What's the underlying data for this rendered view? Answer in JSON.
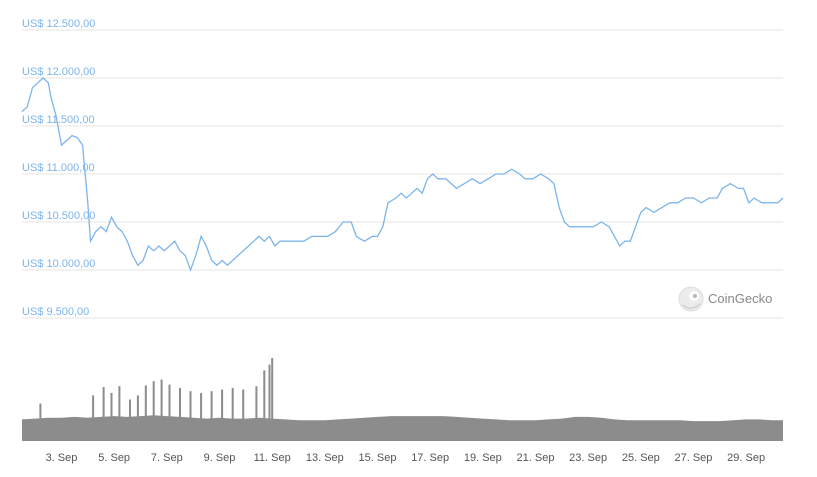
{
  "chart_data": {
    "type": "line",
    "title": "",
    "xlabel": "",
    "ylabel": "",
    "currency_prefix": "US$",
    "y_ticks": [
      9500,
      10000,
      10500,
      11000,
      11500,
      12000,
      12500
    ],
    "y_tick_labels": [
      "US$ 9.500,00",
      "US$ 10.000,00",
      "US$ 10.500,00",
      "US$ 11.000,00",
      "US$ 11.500,00",
      "US$ 12.000,00",
      "US$ 12.500,00"
    ],
    "ylim": [
      9500,
      12500
    ],
    "x_range_days": [
      1.5,
      30.4
    ],
    "x_ticks": [
      3,
      5,
      7,
      9,
      11,
      13,
      15,
      17,
      19,
      21,
      23,
      25,
      27,
      29
    ],
    "x_tick_labels": [
      "3. Sep",
      "5. Sep",
      "7. Sep",
      "9. Sep",
      "11. Sep",
      "13. Sep",
      "15. Sep",
      "17. Sep",
      "19. Sep",
      "21. Sep",
      "23. Sep",
      "25. Sep",
      "27. Sep",
      "29. Sep"
    ],
    "grid": true,
    "series": [
      {
        "name": "",
        "color": "#7cb5ec",
        "points": [
          [
            1.5,
            11650
          ],
          [
            1.7,
            11700
          ],
          [
            1.9,
            11900
          ],
          [
            2.1,
            11950
          ],
          [
            2.3,
            12000
          ],
          [
            2.5,
            11950
          ],
          [
            2.6,
            11800
          ],
          [
            2.8,
            11600
          ],
          [
            3.0,
            11300
          ],
          [
            3.2,
            11350
          ],
          [
            3.4,
            11400
          ],
          [
            3.6,
            11380
          ],
          [
            3.8,
            11300
          ],
          [
            3.9,
            11000
          ],
          [
            4.0,
            10700
          ],
          [
            4.1,
            10300
          ],
          [
            4.3,
            10400
          ],
          [
            4.5,
            10450
          ],
          [
            4.7,
            10400
          ],
          [
            4.9,
            10550
          ],
          [
            5.1,
            10450
          ],
          [
            5.3,
            10400
          ],
          [
            5.5,
            10300
          ],
          [
            5.7,
            10150
          ],
          [
            5.9,
            10050
          ],
          [
            6.1,
            10100
          ],
          [
            6.3,
            10250
          ],
          [
            6.5,
            10200
          ],
          [
            6.7,
            10250
          ],
          [
            6.9,
            10200
          ],
          [
            7.1,
            10250
          ],
          [
            7.3,
            10300
          ],
          [
            7.5,
            10200
          ],
          [
            7.7,
            10150
          ],
          [
            7.9,
            10000
          ],
          [
            8.1,
            10150
          ],
          [
            8.3,
            10350
          ],
          [
            8.5,
            10250
          ],
          [
            8.7,
            10100
          ],
          [
            8.9,
            10050
          ],
          [
            9.1,
            10100
          ],
          [
            9.3,
            10050
          ],
          [
            9.5,
            10100
          ],
          [
            9.7,
            10150
          ],
          [
            9.9,
            10200
          ],
          [
            10.1,
            10250
          ],
          [
            10.3,
            10300
          ],
          [
            10.5,
            10350
          ],
          [
            10.7,
            10300
          ],
          [
            10.9,
            10350
          ],
          [
            11.1,
            10250
          ],
          [
            11.3,
            10300
          ],
          [
            11.6,
            10300
          ],
          [
            11.9,
            10300
          ],
          [
            12.2,
            10300
          ],
          [
            12.5,
            10350
          ],
          [
            12.8,
            10350
          ],
          [
            13.1,
            10350
          ],
          [
            13.4,
            10400
          ],
          [
            13.7,
            10500
          ],
          [
            14.0,
            10500
          ],
          [
            14.2,
            10350
          ],
          [
            14.5,
            10300
          ],
          [
            14.8,
            10350
          ],
          [
            15.0,
            10350
          ],
          [
            15.2,
            10450
          ],
          [
            15.4,
            10700
          ],
          [
            15.7,
            10750
          ],
          [
            15.9,
            10800
          ],
          [
            16.1,
            10750
          ],
          [
            16.3,
            10800
          ],
          [
            16.5,
            10850
          ],
          [
            16.7,
            10800
          ],
          [
            16.9,
            10950
          ],
          [
            17.1,
            11000
          ],
          [
            17.3,
            10950
          ],
          [
            17.6,
            10950
          ],
          [
            17.8,
            10900
          ],
          [
            18.0,
            10850
          ],
          [
            18.3,
            10900
          ],
          [
            18.6,
            10950
          ],
          [
            18.9,
            10900
          ],
          [
            19.2,
            10950
          ],
          [
            19.5,
            11000
          ],
          [
            19.8,
            11000
          ],
          [
            20.1,
            11050
          ],
          [
            20.4,
            11000
          ],
          [
            20.6,
            10950
          ],
          [
            20.9,
            10950
          ],
          [
            21.2,
            11000
          ],
          [
            21.5,
            10950
          ],
          [
            21.7,
            10900
          ],
          [
            21.9,
            10650
          ],
          [
            22.1,
            10500
          ],
          [
            22.3,
            10450
          ],
          [
            22.6,
            10450
          ],
          [
            22.9,
            10450
          ],
          [
            23.2,
            10450
          ],
          [
            23.5,
            10500
          ],
          [
            23.8,
            10450
          ],
          [
            24.0,
            10350
          ],
          [
            24.2,
            10250
          ],
          [
            24.4,
            10300
          ],
          [
            24.6,
            10300
          ],
          [
            24.8,
            10450
          ],
          [
            25.0,
            10600
          ],
          [
            25.2,
            10650
          ],
          [
            25.5,
            10600
          ],
          [
            25.8,
            10650
          ],
          [
            26.1,
            10700
          ],
          [
            26.4,
            10700
          ],
          [
            26.7,
            10750
          ],
          [
            27.0,
            10750
          ],
          [
            27.3,
            10700
          ],
          [
            27.6,
            10750
          ],
          [
            27.9,
            10750
          ],
          [
            28.1,
            10850
          ],
          [
            28.4,
            10900
          ],
          [
            28.7,
            10850
          ],
          [
            28.9,
            10850
          ],
          [
            29.1,
            10700
          ],
          [
            29.3,
            10750
          ],
          [
            29.6,
            10700
          ],
          [
            29.9,
            10700
          ],
          [
            30.2,
            10700
          ],
          [
            30.4,
            10750
          ]
        ]
      }
    ],
    "volume": {
      "color": "#8c8c8c",
      "points": [
        [
          1.5,
          0.26
        ],
        [
          2.0,
          0.27
        ],
        [
          2.5,
          0.28
        ],
        [
          3.0,
          0.28
        ],
        [
          3.5,
          0.29
        ],
        [
          4.0,
          0.28
        ],
        [
          4.5,
          0.29
        ],
        [
          5.0,
          0.3
        ],
        [
          5.5,
          0.29
        ],
        [
          6.0,
          0.3
        ],
        [
          6.5,
          0.31
        ],
        [
          7.0,
          0.3
        ],
        [
          7.5,
          0.29
        ],
        [
          8.0,
          0.28
        ],
        [
          8.5,
          0.27
        ],
        [
          9.0,
          0.28
        ],
        [
          9.5,
          0.27
        ],
        [
          10.0,
          0.27
        ],
        [
          10.5,
          0.28
        ],
        [
          11.0,
          0.27
        ],
        [
          11.5,
          0.26
        ],
        [
          12.0,
          0.25
        ],
        [
          12.5,
          0.25
        ],
        [
          13.0,
          0.25
        ],
        [
          13.5,
          0.26
        ],
        [
          14.0,
          0.27
        ],
        [
          14.5,
          0.28
        ],
        [
          15.0,
          0.29
        ],
        [
          15.5,
          0.3
        ],
        [
          16.0,
          0.3
        ],
        [
          16.5,
          0.3
        ],
        [
          17.0,
          0.3
        ],
        [
          17.5,
          0.3
        ],
        [
          18.0,
          0.29
        ],
        [
          18.5,
          0.28
        ],
        [
          19.0,
          0.27
        ],
        [
          19.5,
          0.26
        ],
        [
          20.0,
          0.25
        ],
        [
          20.5,
          0.25
        ],
        [
          21.0,
          0.25
        ],
        [
          21.5,
          0.26
        ],
        [
          22.0,
          0.27
        ],
        [
          22.5,
          0.29
        ],
        [
          23.0,
          0.29
        ],
        [
          23.5,
          0.28
        ],
        [
          24.0,
          0.26
        ],
        [
          24.5,
          0.25
        ],
        [
          25.0,
          0.25
        ],
        [
          25.5,
          0.25
        ],
        [
          26.0,
          0.25
        ],
        [
          26.5,
          0.25
        ],
        [
          27.0,
          0.24
        ],
        [
          27.5,
          0.24
        ],
        [
          28.0,
          0.24
        ],
        [
          28.5,
          0.25
        ],
        [
          29.0,
          0.26
        ],
        [
          29.5,
          0.26
        ],
        [
          30.0,
          0.25
        ],
        [
          30.4,
          0.25
        ]
      ],
      "spikes": [
        [
          2.2,
          0.45
        ],
        [
          4.2,
          0.55
        ],
        [
          4.6,
          0.65
        ],
        [
          4.9,
          0.58
        ],
        [
          5.2,
          0.66
        ],
        [
          5.6,
          0.5
        ],
        [
          5.9,
          0.55
        ],
        [
          6.2,
          0.67
        ],
        [
          6.5,
          0.72
        ],
        [
          6.8,
          0.74
        ],
        [
          7.1,
          0.68
        ],
        [
          7.5,
          0.64
        ],
        [
          7.9,
          0.6
        ],
        [
          8.3,
          0.58
        ],
        [
          8.7,
          0.6
        ],
        [
          9.1,
          0.62
        ],
        [
          9.5,
          0.64
        ],
        [
          9.9,
          0.62
        ],
        [
          10.4,
          0.66
        ],
        [
          10.7,
          0.85
        ],
        [
          10.9,
          0.92
        ],
        [
          11.0,
          1.0
        ]
      ]
    }
  },
  "watermark": {
    "label": "CoinGecko",
    "icon": "gecko-logo-icon"
  }
}
